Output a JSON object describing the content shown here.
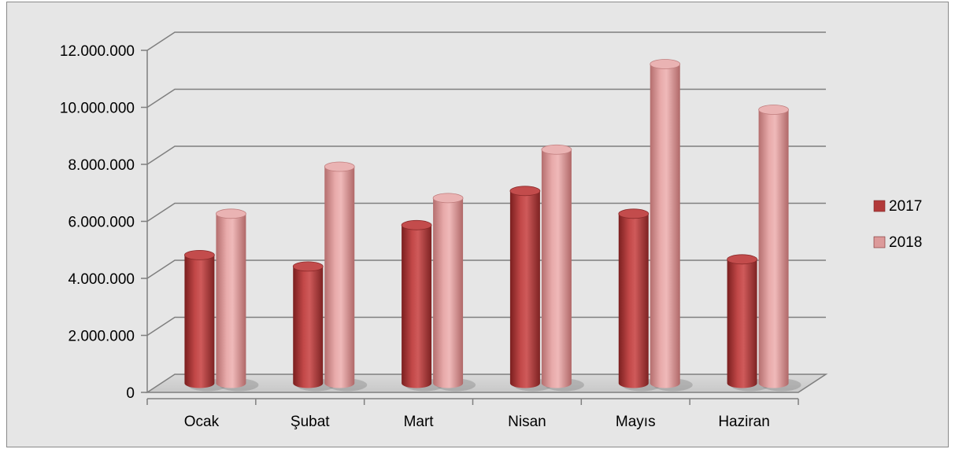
{
  "chart_data": {
    "type": "bar",
    "title": "",
    "xlabel": "",
    "ylabel": "",
    "categories": [
      "Ocak",
      "Şubat",
      "Mart",
      "Nisan",
      "Mayıs",
      "Haziran"
    ],
    "series": [
      {
        "name": "2017",
        "values": [
          4500000,
          4100000,
          5550000,
          6750000,
          5950000,
          4350000
        ],
        "color": "#b23a3a"
      },
      {
        "name": "2018",
        "values": [
          5950000,
          7600000,
          6500000,
          8200000,
          11200000,
          9600000
        ],
        "color": "#dc9a9a"
      }
    ],
    "ylim": [
      0,
      12000000
    ],
    "yticks": [
      0,
      2000000,
      4000000,
      6000000,
      8000000,
      10000000,
      12000000
    ],
    "ytick_labels": [
      "0",
      "2.000.000",
      "4.000.000",
      "6.000.000",
      "8.000.000",
      "10.000.000",
      "12.000.000"
    ],
    "grid": true,
    "style": "3d-cylinder",
    "legend_position": "right"
  }
}
